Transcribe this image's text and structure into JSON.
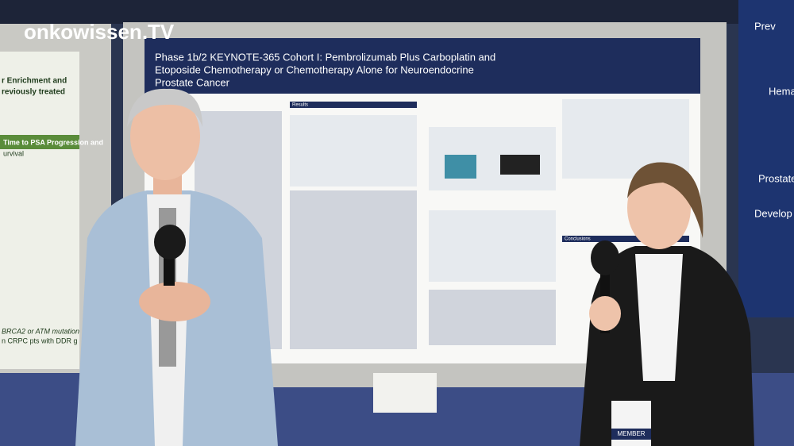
{
  "watermark": "onkowissen.TV",
  "poster": {
    "title_lines": [
      "Phase 1b/2 KEYNOTE-365 Cohort I: Pembrolizumab Plus Carboplatin and",
      "Etoposide Chemotherapy or Chemotherapy Alone for Neuroendocrine",
      "Prostate Cancer"
    ],
    "sections": [
      "Results",
      "Conclusions"
    ]
  },
  "left_poster": {
    "lines": [
      "r Enrichment and",
      "reviously treated",
      "Time to PSA Progression and",
      "urvival",
      "BRCA2 or ATM mutation",
      "n CRPC pts with DDR g"
    ]
  },
  "right_panel": {
    "lines": [
      "Prev",
      "Hema",
      "Prostate",
      "Develop"
    ]
  },
  "badge": "MEMBER"
}
